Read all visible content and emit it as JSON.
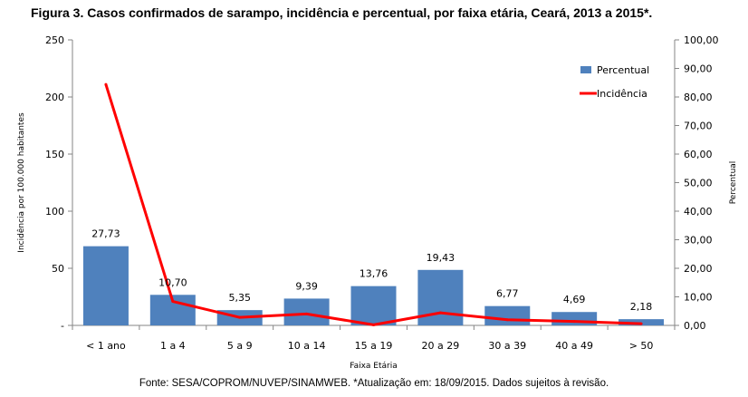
{
  "figure_title": "Figura 3. Casos confirmados de sarampo, incidência e percentual, por faixa etária, Ceará, 2013 a 2015*.",
  "source_note": "Fonte: SESA/COPROM/NUVEP/SINAMWEB. *Atualização em: 18/09/2015. Dados sujeitos à revisão.",
  "colors": {
    "bar": "#4f81bd",
    "line": "#ff0000",
    "axis": "#868686",
    "text": "#000000"
  },
  "chart_data": {
    "type": "bar+line",
    "title": "Figura 3. Casos confirmados de sarampo, incidência e percentual, por faixa etária, Ceará, 2013 a 2015*.",
    "xlabel": "Faixa Etária",
    "ylabel_left": "Incidência por 100.000 habitantes",
    "ylabel_right": "Percentual",
    "categories": [
      "< 1 ano",
      "1 a 4",
      "5 a 9",
      "10 a 14",
      "15 a 19",
      "20 a 29",
      "30 a 39",
      "40 a 49",
      "> 50"
    ],
    "left_axis": {
      "range": [
        0,
        250
      ],
      "ticks": [
        0,
        50,
        100,
        150,
        200,
        250
      ],
      "tick_labels": [
        "-",
        "50",
        "100",
        "150",
        "200",
        "250"
      ]
    },
    "right_axis": {
      "range": [
        0,
        100
      ],
      "ticks": [
        0,
        10,
        20,
        30,
        40,
        50,
        60,
        70,
        80,
        90,
        100
      ],
      "tick_labels": [
        "0,00",
        "10,00",
        "20,00",
        "30,00",
        "40,00",
        "50,00",
        "60,00",
        "70,00",
        "80,00",
        "90,00",
        "100,00"
      ]
    },
    "series": [
      {
        "name": "Percentual",
        "type": "bar",
        "axis": "right",
        "values": [
          27.73,
          10.7,
          5.35,
          9.39,
          13.76,
          19.43,
          6.77,
          4.69,
          2.18
        ],
        "labels": [
          "27,73",
          "10,70",
          "5,35",
          "9,39",
          "13,76",
          "19,43",
          "6,77",
          "4,69",
          "2,18"
        ]
      },
      {
        "name": "Incidência",
        "type": "line",
        "axis": "left",
        "values": [
          211,
          21,
          7,
          10,
          0.5,
          11,
          5,
          3.5,
          1.5
        ]
      }
    ],
    "legend": {
      "position": "top-right",
      "entries": [
        "Percentual",
        "Incidência"
      ]
    }
  }
}
